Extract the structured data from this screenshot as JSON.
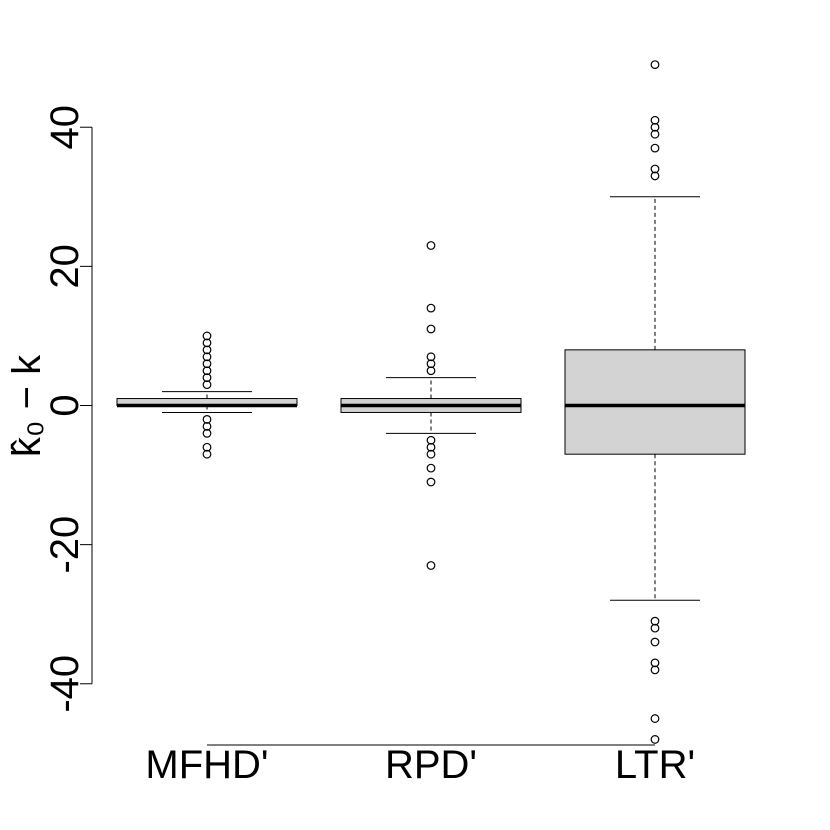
{
  "chart_data": {
    "type": "box",
    "y_label": "k̂₀ − k",
    "categories": [
      "MFHD'",
      "RPD'",
      "LTR'"
    ],
    "color": "#d3d3d3",
    "ylim": [
      -48.8,
      48.8
    ],
    "yticks": [
      -40,
      -20,
      0,
      20,
      40
    ],
    "boxes": [
      {
        "min": -1,
        "q1": 0,
        "median": 0,
        "q3": 1,
        "max": 2,
        "outliers": [
          3,
          4,
          5,
          6,
          7,
          8,
          9,
          10,
          -2,
          -3,
          -4,
          -6,
          -7
        ]
      },
      {
        "min": -4,
        "q1": -1,
        "median": 0,
        "q3": 1,
        "max": 4,
        "outliers": [
          23,
          14,
          11,
          7,
          6,
          5,
          -5,
          -6,
          -7,
          -9,
          -11,
          -23
        ]
      },
      {
        "min": -28,
        "q1": -7,
        "median": 0,
        "q3": 8,
        "max": 30,
        "outliers": [
          49,
          41,
          40,
          39,
          37,
          34,
          33,
          -31,
          -32,
          -34,
          -37,
          -38,
          -45,
          -48
        ]
      }
    ]
  }
}
